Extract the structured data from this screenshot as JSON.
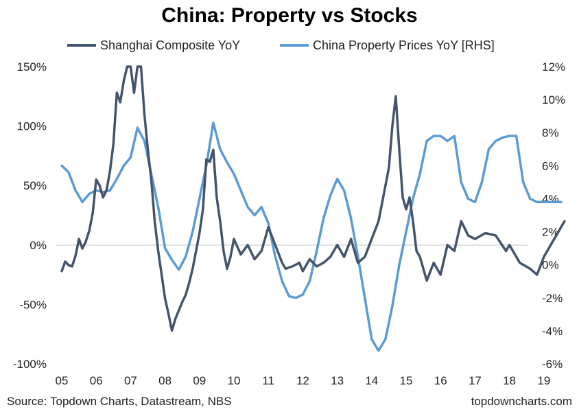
{
  "chart_data": {
    "type": "line",
    "title": "China: Property vs Stocks",
    "legend_position": "top",
    "grid": false,
    "x_ticks": [
      "05",
      "06",
      "07",
      "08",
      "09",
      "10",
      "11",
      "12",
      "13",
      "14",
      "15",
      "16",
      "17",
      "18",
      "19"
    ],
    "x_range": [
      2005.0,
      2019.7
    ],
    "y_left": {
      "ticks": [
        "150%",
        "100%",
        "50%",
        "0%",
        "-50%",
        "-100%"
      ],
      "tick_values": [
        150,
        100,
        50,
        0,
        -50,
        -100
      ],
      "range": [
        -100,
        150
      ]
    },
    "y_right": {
      "ticks": [
        "12%",
        "10%",
        "8%",
        "6%",
        "4%",
        "2%",
        "0%",
        "-2%",
        "-4%",
        "-6%"
      ],
      "tick_values": [
        12,
        10,
        8,
        6,
        4,
        2,
        0,
        -2,
        -4,
        -6
      ],
      "range": [
        -6,
        12
      ]
    },
    "series": [
      {
        "name": "Shanghai Composite YoY",
        "axis": "left",
        "color": "#44546a",
        "x": [
          2005.0,
          2005.1,
          2005.2,
          2005.3,
          2005.4,
          2005.5,
          2005.6,
          2005.7,
          2005.8,
          2005.9,
          2006.0,
          2006.1,
          2006.2,
          2006.3,
          2006.4,
          2006.5,
          2006.6,
          2006.7,
          2006.8,
          2006.9,
          2007.0,
          2007.1,
          2007.2,
          2007.3,
          2007.4,
          2007.5,
          2007.6,
          2007.7,
          2007.8,
          2007.9,
          2008.0,
          2008.1,
          2008.2,
          2008.3,
          2008.4,
          2008.5,
          2008.6,
          2008.7,
          2008.8,
          2008.9,
          2009.0,
          2009.1,
          2009.2,
          2009.3,
          2009.4,
          2009.5,
          2009.6,
          2009.7,
          2009.8,
          2009.9,
          2010.0,
          2010.2,
          2010.4,
          2010.6,
          2010.8,
          2011.0,
          2011.2,
          2011.4,
          2011.5,
          2011.7,
          2011.9,
          2012.0,
          2012.2,
          2012.4,
          2012.6,
          2012.8,
          2013.0,
          2013.2,
          2013.4,
          2013.6,
          2013.8,
          2014.0,
          2014.2,
          2014.4,
          2014.5,
          2014.6,
          2014.7,
          2014.8,
          2014.9,
          2015.0,
          2015.1,
          2015.2,
          2015.3,
          2015.4,
          2015.6,
          2015.8,
          2016.0,
          2016.2,
          2016.4,
          2016.6,
          2016.8,
          2017.0,
          2017.3,
          2017.6,
          2017.9,
          2018.0,
          2018.3,
          2018.6,
          2018.8,
          2019.0,
          2019.2,
          2019.4,
          2019.5,
          2019.6
        ],
        "values": [
          -22,
          -14,
          -17,
          -18,
          -9,
          5,
          -3,
          3,
          12,
          27,
          55,
          50,
          40,
          46,
          62,
          85,
          128,
          120,
          138,
          150,
          160,
          128,
          150,
          160,
          110,
          80,
          55,
          20,
          -5,
          -25,
          -45,
          -58,
          -72,
          -62,
          -55,
          -48,
          -42,
          -32,
          -20,
          -5,
          10,
          30,
          72,
          70,
          80,
          40,
          20,
          -5,
          -20,
          -10,
          5,
          -8,
          0,
          -12,
          -5,
          15,
          0,
          -15,
          -20,
          -18,
          -15,
          -22,
          -12,
          -18,
          -15,
          -10,
          0,
          -10,
          5,
          -15,
          -10,
          5,
          20,
          50,
          65,
          100,
          125,
          80,
          40,
          30,
          40,
          20,
          -5,
          -10,
          -30,
          -15,
          -25,
          0,
          -5,
          20,
          8,
          5,
          10,
          8,
          -5,
          0,
          -15,
          -20,
          -25,
          -10,
          0,
          10,
          15,
          20
        ]
      },
      {
        "name": "China Property Prices YoY [RHS]",
        "axis": "right",
        "color": "#5b9bd5",
        "x": [
          2005.0,
          2005.2,
          2005.4,
          2005.6,
          2005.8,
          2006.0,
          2006.2,
          2006.4,
          2006.6,
          2006.8,
          2007.0,
          2007.2,
          2007.4,
          2007.6,
          2007.8,
          2008.0,
          2008.2,
          2008.4,
          2008.6,
          2008.8,
          2009.0,
          2009.2,
          2009.4,
          2009.6,
          2009.8,
          2010.0,
          2010.2,
          2010.4,
          2010.6,
          2010.8,
          2011.0,
          2011.2,
          2011.4,
          2011.6,
          2011.8,
          2012.0,
          2012.2,
          2012.4,
          2012.6,
          2012.8,
          2013.0,
          2013.2,
          2013.4,
          2013.6,
          2013.8,
          2014.0,
          2014.2,
          2014.4,
          2014.6,
          2014.8,
          2015.0,
          2015.2,
          2015.4,
          2015.6,
          2015.8,
          2016.0,
          2016.2,
          2016.4,
          2016.6,
          2016.8,
          2017.0,
          2017.2,
          2017.4,
          2017.6,
          2017.8,
          2018.0,
          2018.2,
          2018.4,
          2018.6,
          2018.8,
          2019.0,
          2019.2,
          2019.5
        ],
        "values": [
          6.0,
          5.6,
          4.5,
          3.8,
          4.3,
          4.5,
          4.4,
          4.5,
          5.2,
          6.0,
          6.5,
          8.3,
          7.5,
          5.5,
          3.5,
          1.0,
          0.3,
          -0.3,
          0.5,
          2.0,
          4.0,
          6.0,
          8.6,
          7.0,
          6.2,
          5.5,
          4.5,
          3.5,
          3.0,
          3.5,
          2.5,
          0.5,
          -1.0,
          -1.9,
          -2.0,
          -1.8,
          -1.0,
          0.8,
          2.8,
          4.2,
          5.2,
          4.5,
          2.8,
          0.5,
          -2.0,
          -4.5,
          -5.2,
          -4.5,
          -2.5,
          0.0,
          2.0,
          4.0,
          5.5,
          7.5,
          7.8,
          7.8,
          7.5,
          7.8,
          5.0,
          4.0,
          3.8,
          5.0,
          7.0,
          7.5,
          7.7,
          7.8,
          7.8,
          5.0,
          4.0,
          3.8,
          3.8,
          3.8,
          3.8
        ]
      }
    ],
    "source": "Source: Topdown Charts, Datastream, NBS",
    "watermark": "topdowncharts.com"
  }
}
